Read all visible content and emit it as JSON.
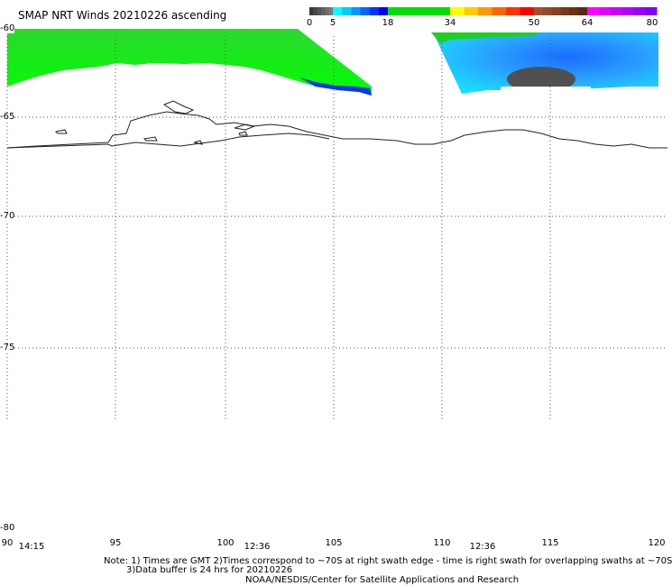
{
  "title": "SMAP NRT Winds 20210226 ascending",
  "color_scale": {
    "labels": [
      "0",
      "5",
      "18",
      "34",
      "50",
      "64",
      "80"
    ],
    "segments": [
      {
        "from": 0,
        "to": 5,
        "colors": [
          "#3a3a3a",
          "#7a7a7a"
        ]
      },
      {
        "from": 5,
        "to": 18,
        "colors": [
          "#00ffff",
          "#0000ff"
        ]
      },
      {
        "from": 18,
        "to": 34,
        "colors": [
          "#00e000",
          "#00e000"
        ]
      },
      {
        "from": 34,
        "to": 50,
        "colors": [
          "#ffff00",
          "#ff0000"
        ]
      },
      {
        "from": 50,
        "to": 64,
        "colors": [
          "#a0522d",
          "#5a2a10"
        ]
      },
      {
        "from": 64,
        "to": 80,
        "colors": [
          "#ff00ff",
          "#8000ff"
        ]
      }
    ]
  },
  "lat_labels": [
    "-60",
    "-65",
    "-70",
    "-75",
    "-80"
  ],
  "lon_labels": [
    "90",
    "95",
    "100",
    "105",
    "110",
    "115",
    "120"
  ],
  "swath_times": [
    "14:15",
    "12:36",
    "12:36"
  ],
  "notes": [
    "Note: 1) Times are GMT 2)Times correspond to ~70S at right swath edge - time is right swath for overlapping swaths at ~70S",
    "3)Data buffer is 24 hrs for 20210226",
    "NOAA/NESDIS/Center for Satellite Applications and Research"
  ]
}
